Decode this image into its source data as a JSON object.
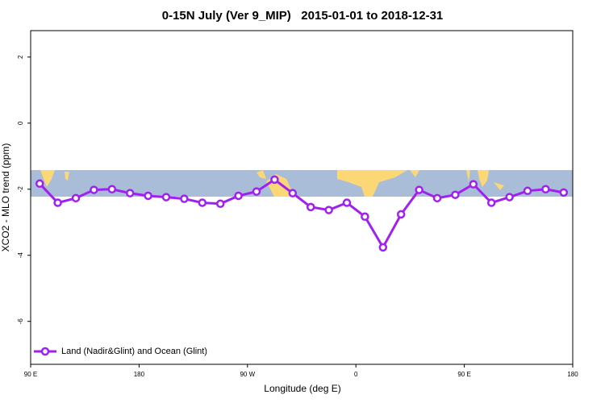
{
  "chart_data": {
    "type": "line",
    "title": "0-15N July (Ver 9_MIP)   2015-01-01 to 2018-12-31",
    "x_label": "Longitude (deg E)",
    "y_label": "XCO2 - MLO trend (ppm)",
    "x": [
      97.5,
      112.5,
      127.5,
      142.5,
      157.5,
      172.5,
      187.5,
      202.5,
      217.5,
      232.5,
      247.5,
      262.5,
      277.5,
      292.5,
      307.5,
      322.5,
      337.5,
      352.5,
      367.5,
      382.5,
      397.5,
      412.5,
      427.5,
      442.5,
      457.5,
      472.5,
      487.5,
      502.5,
      517.5,
      532.5
    ],
    "series": [
      {
        "name": "Land (Nadir&Glint) and Ocean (Glint)",
        "color": "#a020f0",
        "values": [
          -1.83,
          -2.41,
          -2.27,
          -2.02,
          -2.0,
          -2.12,
          -2.2,
          -2.24,
          -2.29,
          -2.41,
          -2.44,
          -2.2,
          -2.07,
          -1.71,
          -2.12,
          -2.54,
          -2.63,
          -2.41,
          -2.83,
          -3.76,
          -2.76,
          -2.02,
          -2.27,
          -2.17,
          -1.85,
          -2.41,
          -2.24,
          -2.05,
          -2.0,
          -2.1
        ]
      }
    ],
    "xlim": [
      90,
      540
    ],
    "xticks": [
      {
        "value": 90,
        "label": "90 E"
      },
      180,
      {
        "value": 270,
        "label": "90 W"
      },
      {
        "value": 360,
        "label": "0"
      },
      {
        "value": 450,
        "label": "90 E"
      },
      {
        "value": 540,
        "label": "180"
      }
    ],
    "ylim": [
      -7.3,
      2.8
    ],
    "yticks": [
      2,
      0,
      -2,
      -4,
      -6
    ],
    "legend": "bottom-left"
  }
}
